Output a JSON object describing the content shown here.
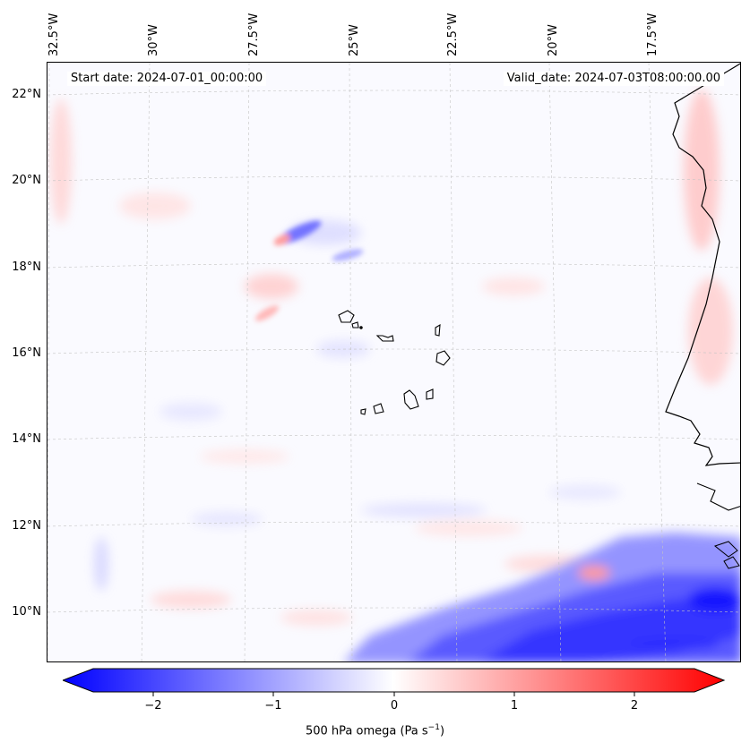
{
  "map": {
    "start_date": "Start date: 2024-07-01_00:00:00",
    "valid_date": "Valid_date: 2024-07-03T08:00:00.00",
    "lon_labels": [
      "32.5°W",
      "30°W",
      "27.5°W",
      "25°W",
      "22.5°W",
      "20°W",
      "17.5°W"
    ],
    "lat_labels": [
      "22°N",
      "20°N",
      "18°N",
      "16°N",
      "14°N",
      "12°N",
      "10°N"
    ],
    "colors": {
      "negative": "#0000ff",
      "neutral": "#ffffff",
      "positive": "#ff0000",
      "coast": "#000000",
      "grid": "#bbbbbb"
    }
  },
  "colorbar": {
    "label_prefix": "500 hPa omega (Pa s",
    "label_exp": "−1",
    "label_suffix": ")",
    "ticks": [
      "−2",
      "−1",
      "0",
      "1",
      "2"
    ],
    "range": [
      -2.75,
      2.75
    ]
  }
}
